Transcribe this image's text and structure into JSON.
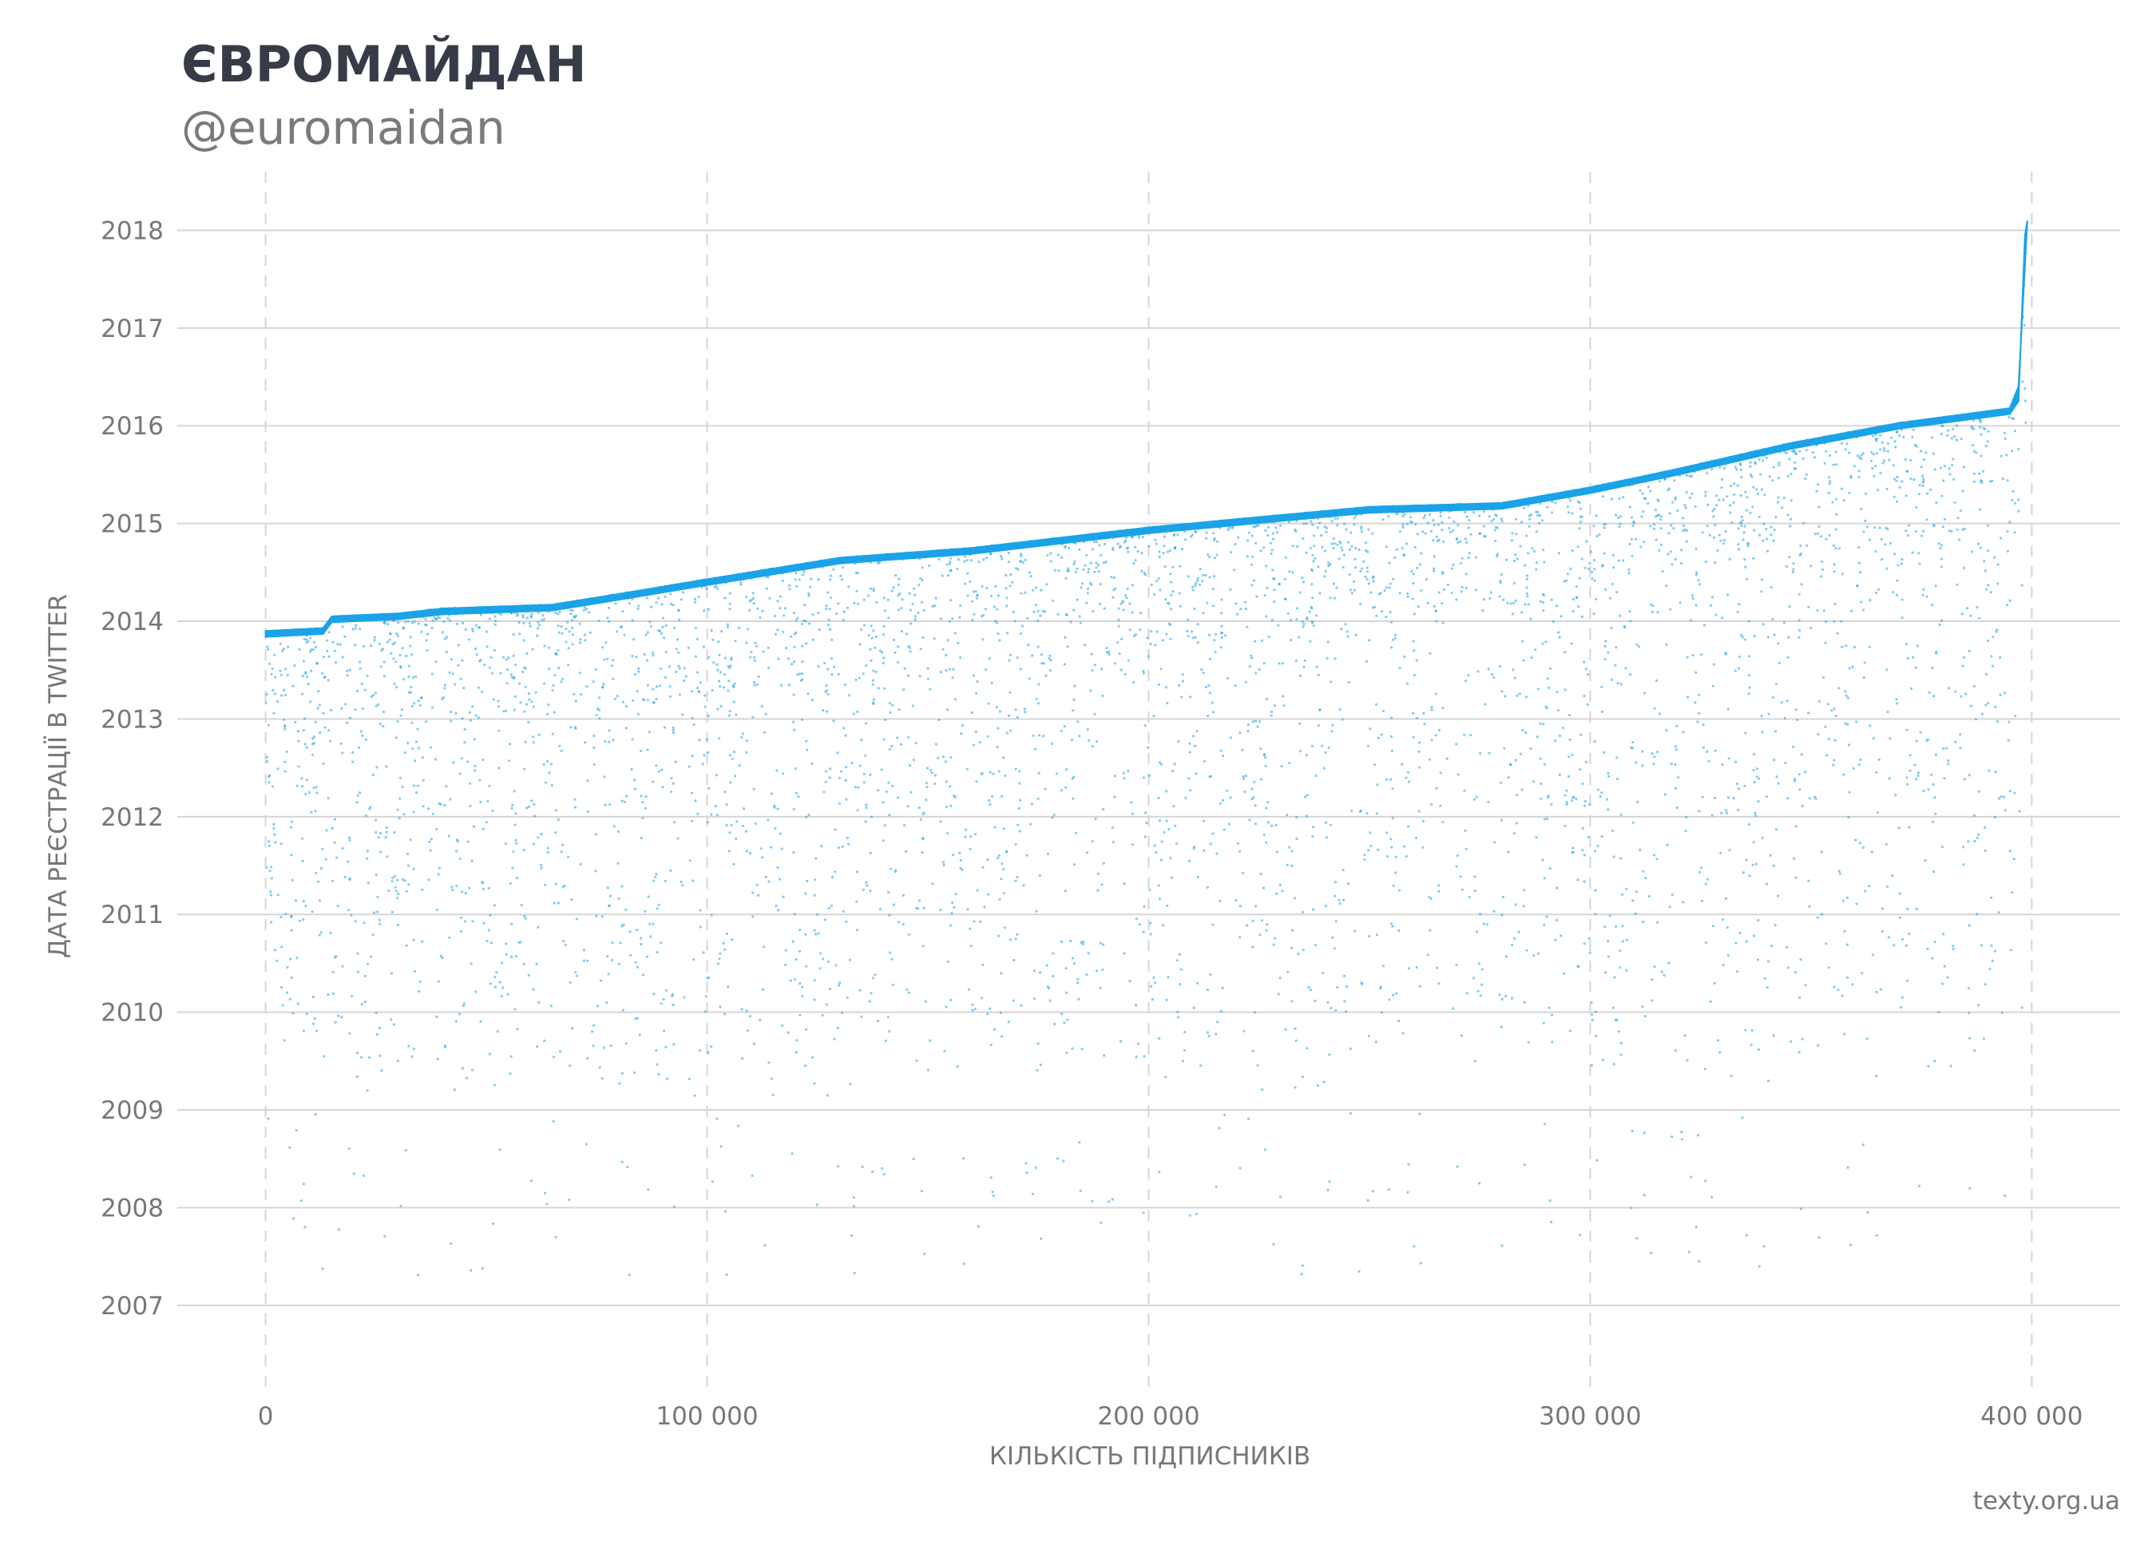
{
  "header": {
    "title": "ЄВРОМАЙДАН",
    "subtitle": "@euromaidan"
  },
  "credit": "texty.org.ua",
  "colors": {
    "points": "#1aa3e8",
    "grid": "#d5d5d5",
    "text": "#777777",
    "title": "#363b47"
  },
  "chart_data": {
    "type": "scatter",
    "xlabel": "КІЛЬКІСТЬ ПІДПИСНИКІВ",
    "ylabel": "ДАТА РЕЄСТРАЦІЇ В TWITTER",
    "x_ticks": [
      {
        "value": 0,
        "label": "0"
      },
      {
        "value": 100000,
        "label": "100 000"
      },
      {
        "value": 200000,
        "label": "200 000"
      },
      {
        "value": 300000,
        "label": "300 000"
      },
      {
        "value": 400000,
        "label": "400 000"
      }
    ],
    "y_ticks": [
      {
        "value": 2007,
        "label": "2007"
      },
      {
        "value": 2008,
        "label": "2008"
      },
      {
        "value": 2009,
        "label": "2009"
      },
      {
        "value": 2010,
        "label": "2010"
      },
      {
        "value": 2011,
        "label": "2011"
      },
      {
        "value": 2012,
        "label": "2012"
      },
      {
        "value": 2013,
        "label": "2013"
      },
      {
        "value": 2014,
        "label": "2014"
      },
      {
        "value": 2015,
        "label": "2015"
      },
      {
        "value": 2016,
        "label": "2016"
      },
      {
        "value": 2017,
        "label": "2017"
      },
      {
        "value": 2018,
        "label": "2018"
      }
    ],
    "xlim": [
      -20000,
      420000
    ],
    "ylim": [
      2006.1,
      2018.6
    ],
    "grid": {
      "y": "solid",
      "x": "dashed"
    },
    "upper_envelope": [
      {
        "x": 0,
        "y": 2013.9
      },
      {
        "x": 13000,
        "y": 2013.93
      },
      {
        "x": 15000,
        "y": 2014.05
      },
      {
        "x": 30000,
        "y": 2014.08
      },
      {
        "x": 40000,
        "y": 2014.13
      },
      {
        "x": 65000,
        "y": 2014.17
      },
      {
        "x": 80000,
        "y": 2014.28
      },
      {
        "x": 100000,
        "y": 2014.43
      },
      {
        "x": 130000,
        "y": 2014.65
      },
      {
        "x": 160000,
        "y": 2014.75
      },
      {
        "x": 200000,
        "y": 2014.96
      },
      {
        "x": 250000,
        "y": 2015.17
      },
      {
        "x": 280000,
        "y": 2015.21
      },
      {
        "x": 300000,
        "y": 2015.37
      },
      {
        "x": 320000,
        "y": 2015.56
      },
      {
        "x": 345000,
        "y": 2015.82
      },
      {
        "x": 370000,
        "y": 2016.03
      },
      {
        "x": 395000,
        "y": 2016.18
      },
      {
        "x": 397000,
        "y": 2016.4
      },
      {
        "x": 399000,
        "y": 2018.1
      }
    ]
  }
}
